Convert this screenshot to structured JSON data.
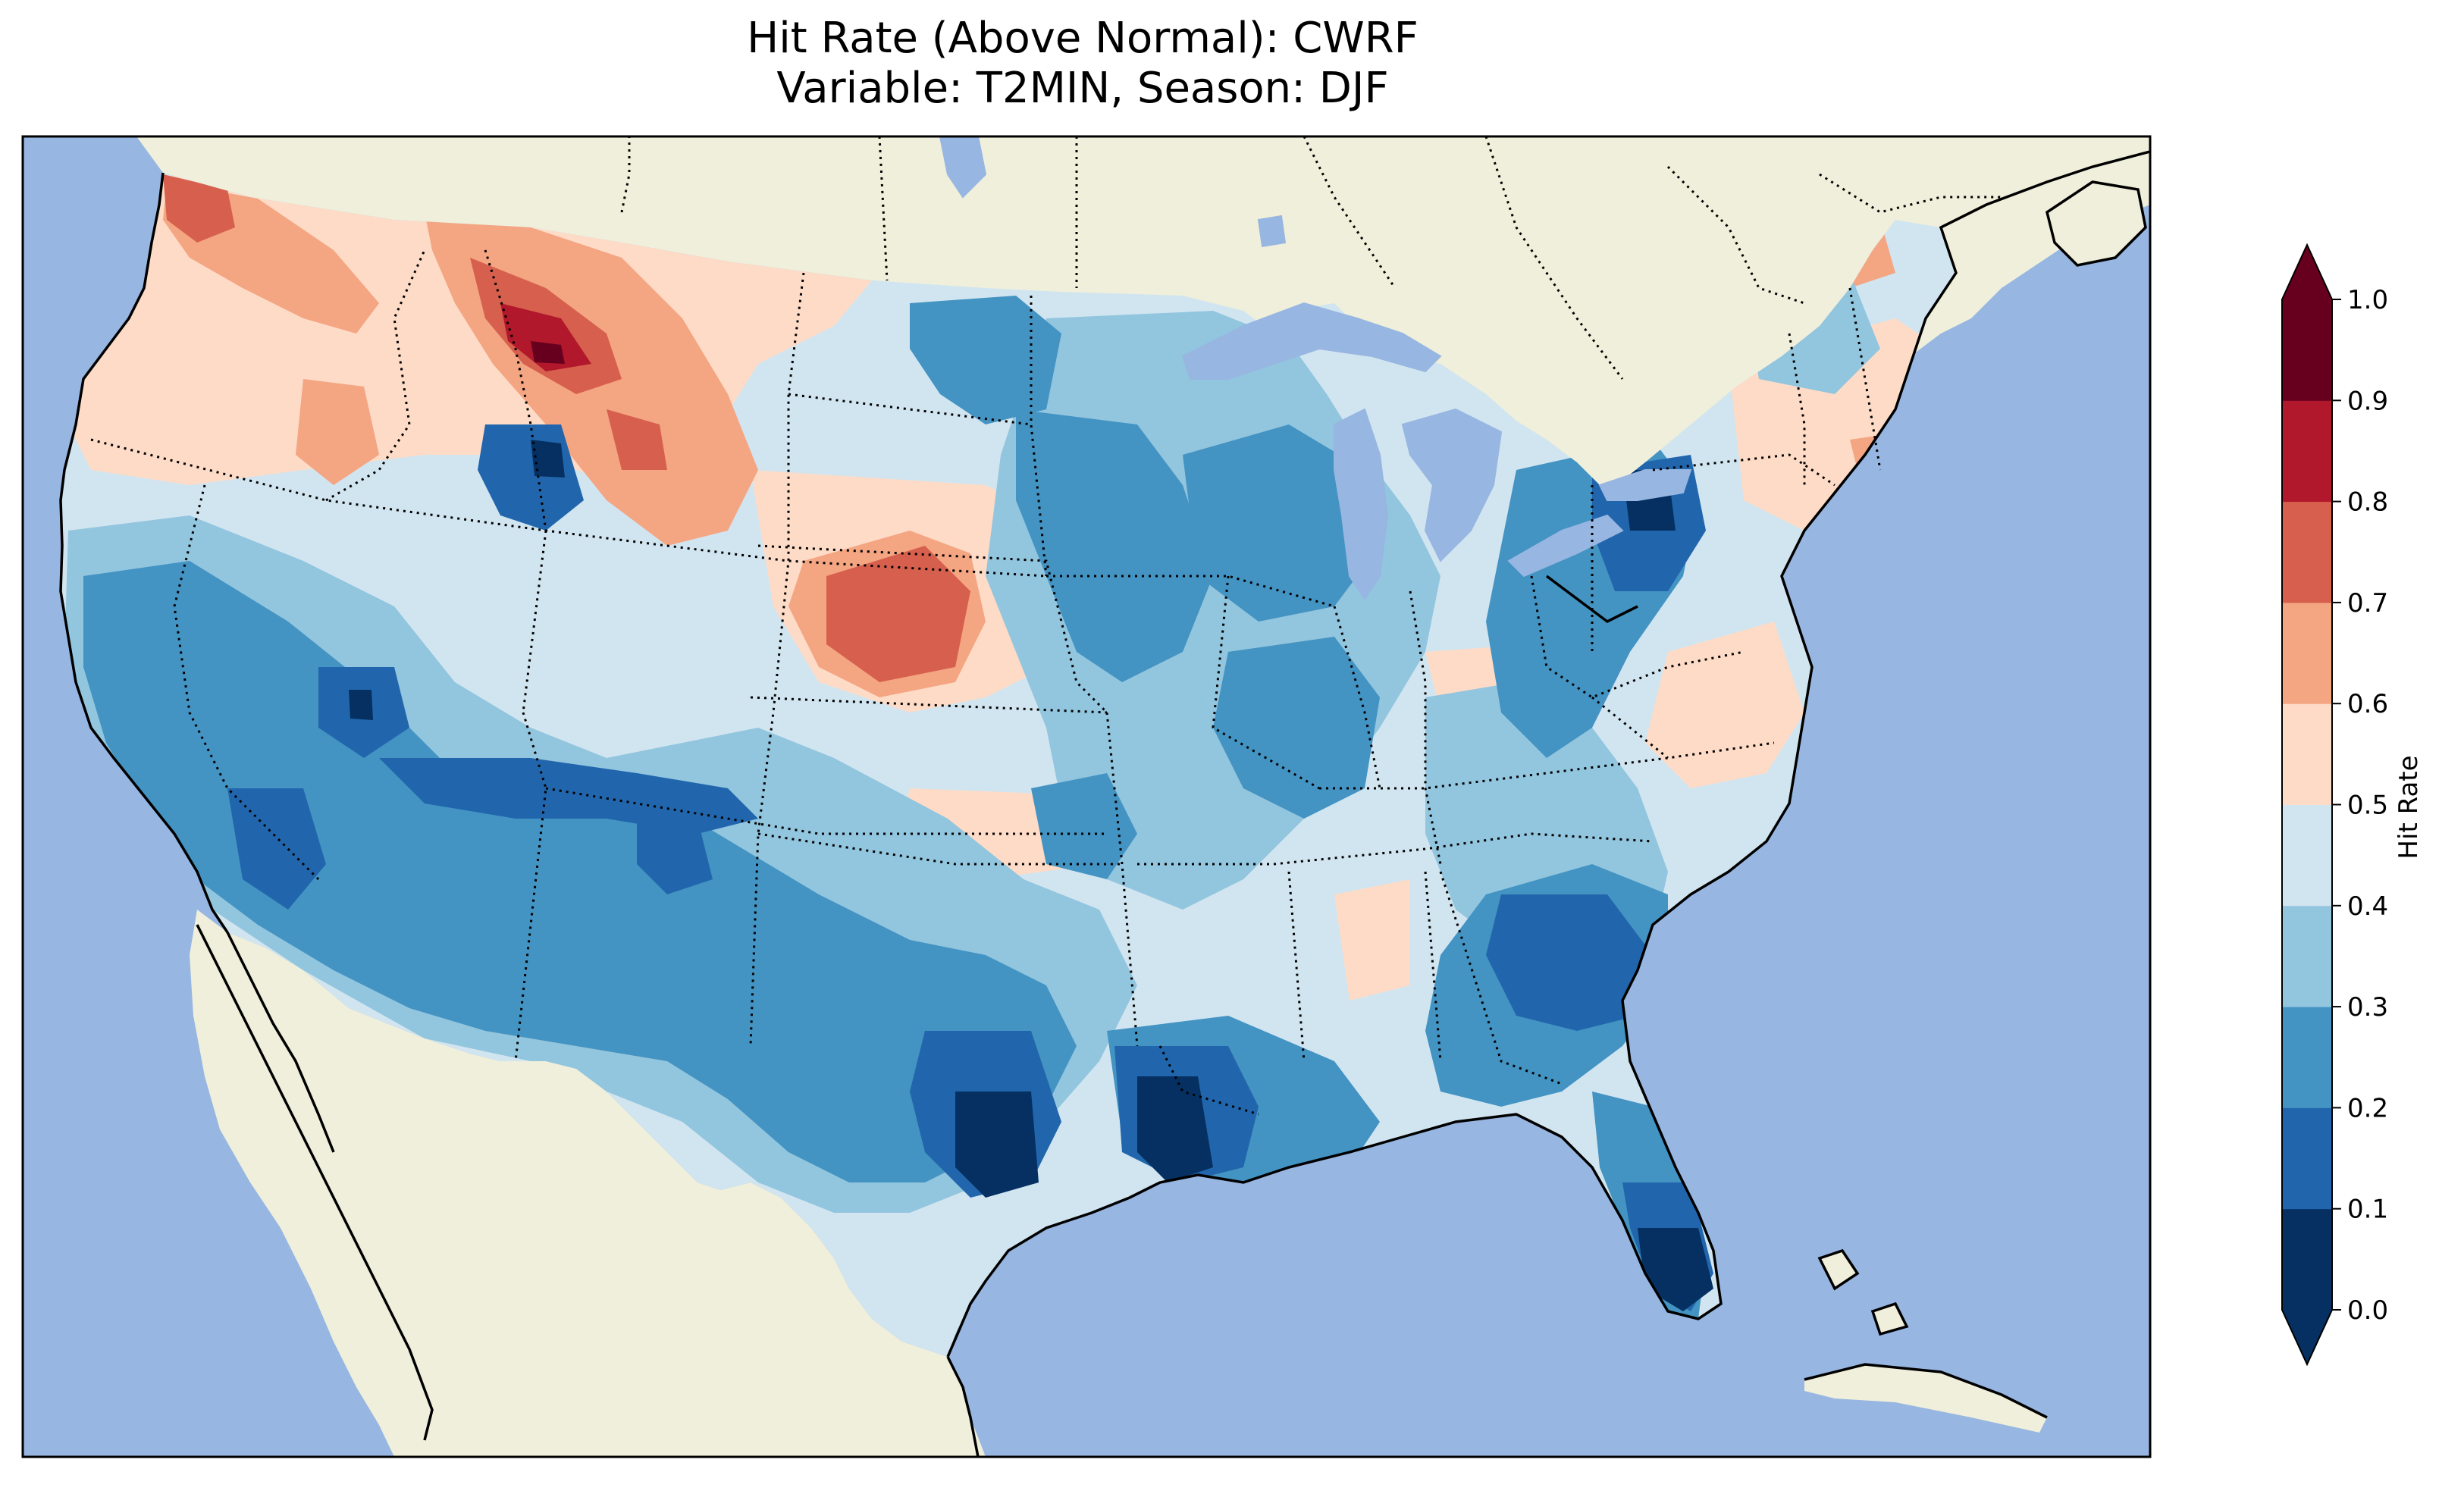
{
  "figure": {
    "title_line1": "Hit Rate (Above Normal): CWRF",
    "title_line2": "Variable: T2MIN, Season: DJF"
  },
  "colors": {
    "ocean": "#97b6e1",
    "land": "#efefdb",
    "lakes": "#97b6e1"
  },
  "colorbar": {
    "label": "Hit Rate",
    "extend": "both",
    "boundaries": [
      0.0,
      0.1,
      0.2,
      0.3,
      0.4,
      0.5,
      0.6,
      0.7,
      0.8,
      0.9,
      1.0
    ],
    "tick_labels": [
      "0.0",
      "0.1",
      "0.2",
      "0.3",
      "0.4",
      "0.5",
      "0.6",
      "0.7",
      "0.8",
      "0.9",
      "1.0"
    ],
    "bin_colors": [
      "#053061",
      "#2166ac",
      "#4393c3",
      "#92c5de",
      "#d1e5f0",
      "#fddbc7",
      "#f4a582",
      "#d6604d",
      "#b2182b",
      "#67001f"
    ],
    "under_color": "#053061",
    "over_color": "#67001f"
  }
}
